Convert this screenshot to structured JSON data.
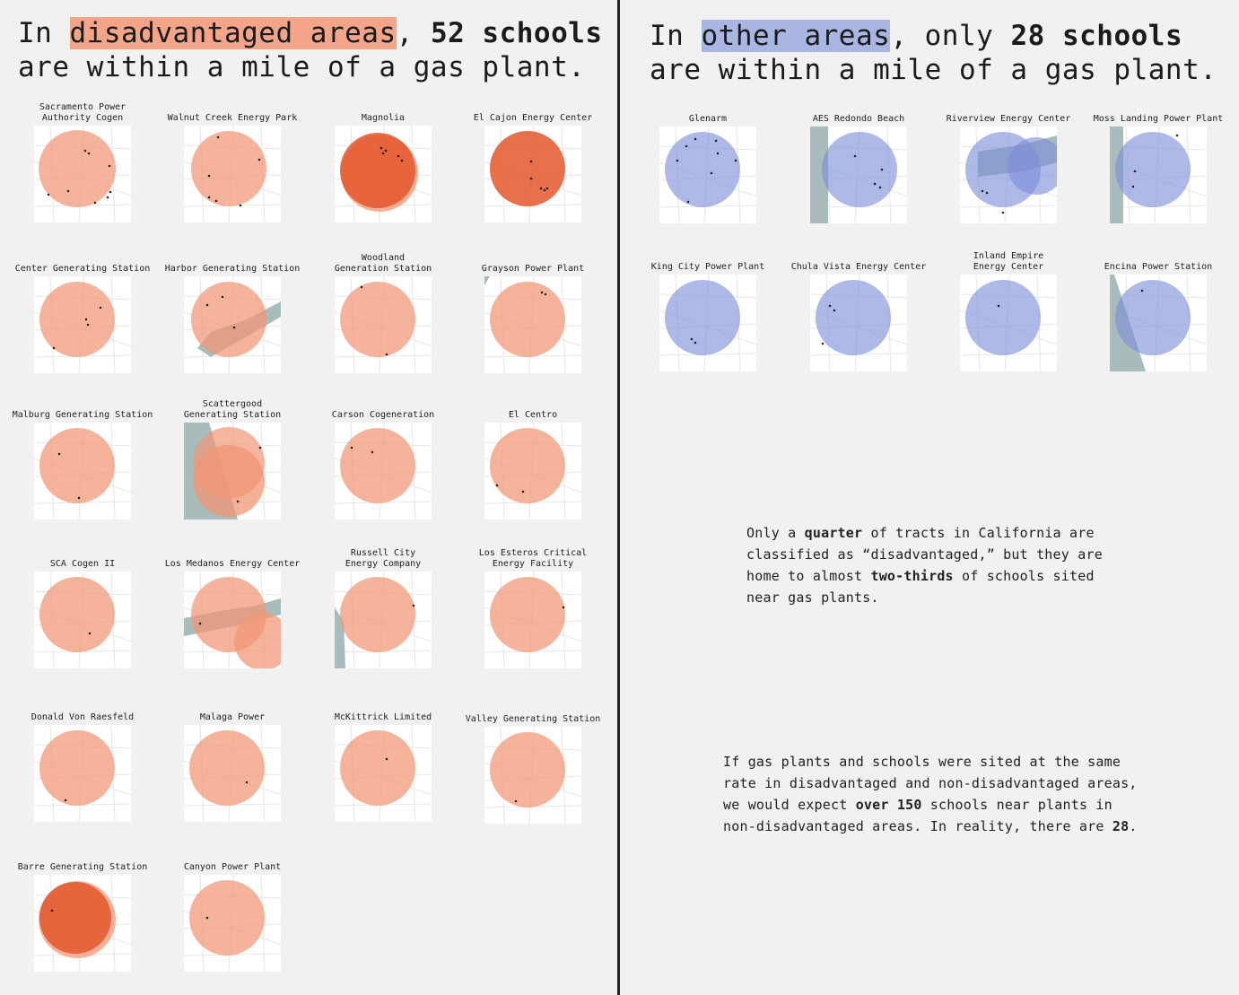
{
  "colors": {
    "disadvantaged": "#f29676",
    "disadvantaged_dark": "#e4572b",
    "other": "#7d8ed8",
    "water": "#a8bcbc",
    "school_dot": "#111111",
    "divider": "#262626"
  },
  "left_panel": {
    "headline": {
      "prefix": "In ",
      "area_label": "disadvantaged areas",
      "mid": ", ",
      "count_label": "52 schools",
      "line2": "are within a mile of a gas plant."
    },
    "plants": [
      {
        "name": "Sacramento Power\nAuthority Cogen",
        "map_labels": []
      },
      {
        "name": "Walnut Creek Energy Park",
        "map_labels": []
      },
      {
        "name": "Magnolia",
        "map_labels": []
      },
      {
        "name": "El Cajon Energy Center",
        "map_labels": []
      },
      {
        "name": "Center Generating Station",
        "map_labels": []
      },
      {
        "name": "Harbor Generating Station",
        "map_labels": []
      },
      {
        "name": "Woodland\nGeneration Station",
        "map_labels": []
      },
      {
        "name": "Grayson Power Plant",
        "map_labels": []
      },
      {
        "name": "Malburg Generating Station",
        "map_labels": []
      },
      {
        "name": "Scattergood\nGenerating Station",
        "map_labels": []
      },
      {
        "name": "Carson Cogeneration",
        "map_labels": []
      },
      {
        "name": "El Centro",
        "map_labels": []
      },
      {
        "name": "SCA Cogen II",
        "map_labels": []
      },
      {
        "name": "Los Medanos Energy Center",
        "map_labels": []
      },
      {
        "name": "Russell City\nEnergy Company",
        "map_labels": []
      },
      {
        "name": "Los Esteros Critical\nEnergy Facility",
        "map_labels": []
      },
      {
        "name": "Donald Von Raesfeld",
        "map_labels": []
      },
      {
        "name": "Malaga Power",
        "map_labels": []
      },
      {
        "name": "McKittrick Limited",
        "map_labels": []
      },
      {
        "name": "Valley Generating Station",
        "map_labels": []
      },
      {
        "name": "Barre Generating Station",
        "map_labels": []
      },
      {
        "name": "Canyon Power Plant",
        "map_labels": []
      }
    ]
  },
  "right_panel": {
    "headline": {
      "prefix": "In ",
      "area_label": "other areas",
      "mid": ", only ",
      "count_label": "28 schools",
      "line2": "are within a mile of a gas plant."
    },
    "plants": [
      {
        "name": "Glenarm",
        "map_labels": []
      },
      {
        "name": "AES Redondo Beach",
        "map_labels": []
      },
      {
        "name": "Riverview Energy Center",
        "map_labels": []
      },
      {
        "name": "Moss Landing Power Plant",
        "map_labels": []
      },
      {
        "name": "King City Power Plant",
        "map_labels": []
      },
      {
        "name": "Chula Vista Energy Center",
        "map_labels": []
      },
      {
        "name": "Inland Empire\nEnergy Center",
        "map_labels": []
      },
      {
        "name": "Encina Power Station",
        "map_labels": []
      }
    ],
    "notes": [
      {
        "pre": "Only a ",
        "b1": "quarter",
        "mid": " of tracts in California are\nclassified as “disadvantaged,” but they are\nhome to almost ",
        "b2": "two-thirds",
        "post": " of schools sited\nnear gas plants."
      },
      {
        "pre": "If gas plants and schools were sited at the same\nrate in disadvantaged and non-disadvantaged areas,\nwe would expect ",
        "b1": "over 150",
        "mid": " schools near plants in\nnon-disadvantaged areas. In reality, there are ",
        "b2": "28",
        "post": "."
      }
    ]
  }
}
